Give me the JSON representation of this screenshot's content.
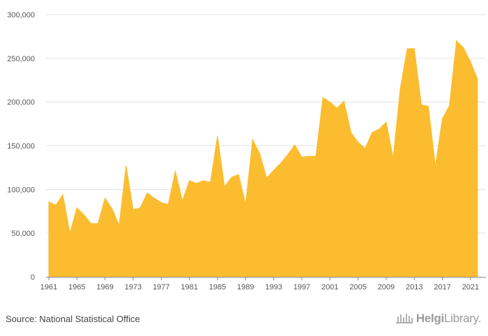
{
  "chart_data": {
    "type": "area",
    "title": "",
    "xlabel": "",
    "ylabel": "",
    "ylim": [
      0,
      300000
    ],
    "yticks": [
      0,
      50000,
      100000,
      150000,
      200000,
      250000,
      300000
    ],
    "ytick_labels": [
      "0",
      "50,000",
      "100,000",
      "150,000",
      "200,000",
      "250,000",
      "300,000"
    ],
    "xticks": [
      1961,
      1965,
      1969,
      1973,
      1977,
      1981,
      1985,
      1989,
      1993,
      1997,
      2001,
      2005,
      2009,
      2013,
      2017,
      2021
    ],
    "xtick_labels": [
      "1961",
      "1965",
      "1969",
      "1973",
      "1977",
      "1981",
      "1985",
      "1989",
      "1993",
      "1997",
      "2001",
      "2005",
      "2009",
      "2013",
      "2017",
      "2021"
    ],
    "grid": "horizontal",
    "x": [
      1961,
      1962,
      1963,
      1964,
      1965,
      1966,
      1967,
      1968,
      1969,
      1970,
      1971,
      1972,
      1973,
      1974,
      1975,
      1976,
      1977,
      1978,
      1979,
      1980,
      1981,
      1982,
      1983,
      1984,
      1985,
      1986,
      1987,
      1988,
      1989,
      1990,
      1991,
      1992,
      1993,
      1994,
      1995,
      1996,
      1997,
      1998,
      1999,
      2000,
      2001,
      2002,
      2003,
      2004,
      2005,
      2006,
      2007,
      2008,
      2009,
      2010,
      2011,
      2012,
      2013,
      2014,
      2015,
      2016,
      2017,
      2018,
      2019,
      2020,
      2021,
      2022
    ],
    "values": [
      86000,
      82000,
      94000,
      50000,
      79000,
      71000,
      61000,
      61000,
      90000,
      78000,
      59000,
      127000,
      77000,
      79000,
      96000,
      90000,
      85000,
      83000,
      121000,
      87000,
      110000,
      107000,
      110000,
      108000,
      161000,
      103000,
      114000,
      117000,
      83000,
      157000,
      141000,
      113000,
      122000,
      130000,
      140000,
      151000,
      137000,
      138000,
      138000,
      205000,
      200000,
      193000,
      201000,
      165000,
      154000,
      147000,
      165000,
      169000,
      177000,
      136000,
      215000,
      261000,
      261000,
      197000,
      195000,
      127000,
      181000,
      196000,
      270000,
      262000,
      246000,
      226000
    ],
    "color": "#fbbc2f"
  },
  "footer": {
    "source": "Source: National Statistical Office",
    "logo_text_bold": "Helgi",
    "logo_text": "Library",
    "logo_dot": "."
  }
}
